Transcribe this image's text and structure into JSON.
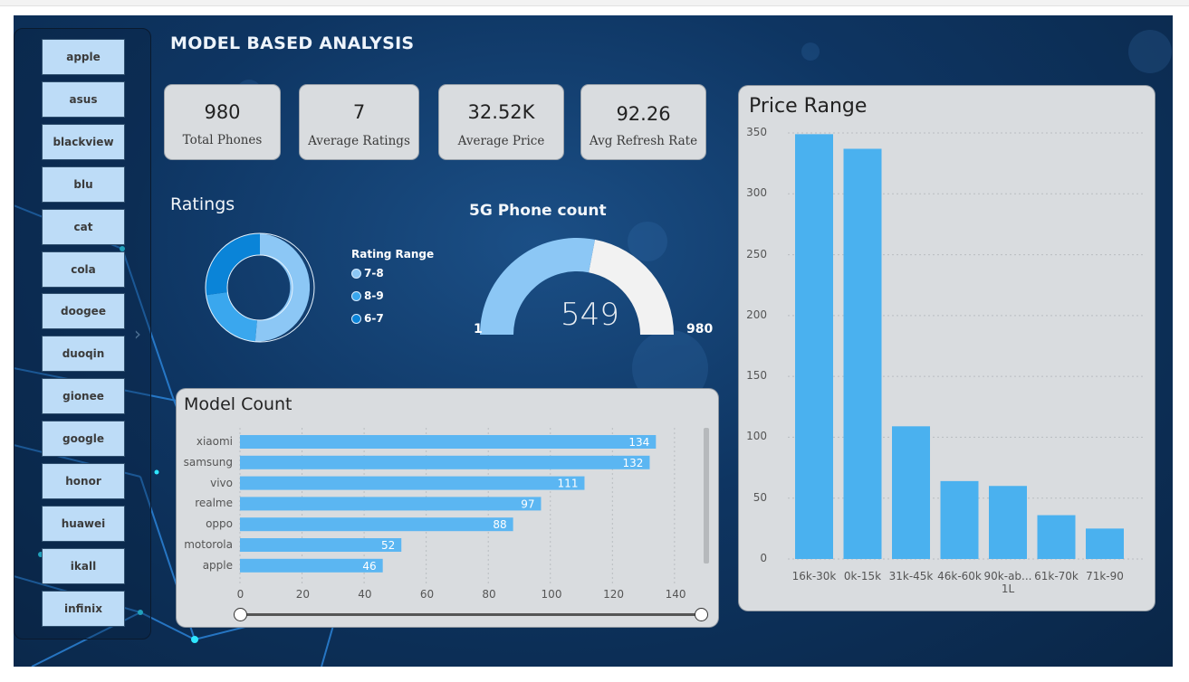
{
  "title": "MODEL BASED ANALYSIS",
  "brand_slicer": {
    "items": [
      "apple",
      "asus",
      "blackview",
      "blu",
      "cat",
      "cola",
      "doogee",
      "duoqin",
      "gionee",
      "google",
      "honor",
      "huawei",
      "ikall",
      "infinix"
    ]
  },
  "kpis": [
    {
      "value": "980",
      "label": "Total Phones"
    },
    {
      "value": "7",
      "label": "Average Ratings"
    },
    {
      "value": "32.52K",
      "label": "Average Price"
    },
    {
      "value": "92.26",
      "label": "Avg Refresh Rate"
    }
  ],
  "ratings": {
    "title": "Ratings",
    "legend_title": "Rating Range",
    "legend": [
      {
        "name": "7-8",
        "color": "#8cc7f5"
      },
      {
        "name": "8-9",
        "color": "#3aa7ee"
      },
      {
        "name": "6-7",
        "color": "#0a84d8"
      }
    ]
  },
  "gauge": {
    "title": "5G Phone count",
    "value": "549",
    "min": "1",
    "max": "980",
    "fill_color": "#8cc7f5",
    "rest_color": "#f2f2f2"
  },
  "chart_data": [
    {
      "type": "bar",
      "orientation": "horizontal",
      "title": "Model Count",
      "categories": [
        "xiaomi",
        "samsung",
        "vivo",
        "realme",
        "oppo",
        "motorola",
        "apple"
      ],
      "values": [
        134,
        132,
        111,
        97,
        88,
        52,
        46
      ],
      "data_labels": [
        "134",
        "132",
        "111",
        "97",
        "88",
        "52",
        "46"
      ],
      "xticks": [
        "0",
        "20",
        "40",
        "60",
        "80",
        "100",
        "120",
        "140"
      ],
      "xlim": [
        0,
        145
      ],
      "grid": true,
      "bar_color": "#5bb6f2"
    },
    {
      "type": "bar",
      "title": "Price Range",
      "categories": [
        "16k-30k",
        "0k-15k",
        "31k-45k",
        "46k-60k",
        "90k-ab...",
        "61k-70k",
        "71k-90"
      ],
      "category_sublabels": [
        "",
        "",
        "",
        "",
        "1L",
        "",
        ""
      ],
      "values": [
        349,
        337,
        109,
        64,
        60,
        36,
        25
      ],
      "yticks": [
        "0",
        "50",
        "100",
        "150",
        "200",
        "250",
        "300",
        "350"
      ],
      "ylim": [
        0,
        350
      ],
      "grid": true,
      "bar_color": "#4ab1ef"
    }
  ]
}
